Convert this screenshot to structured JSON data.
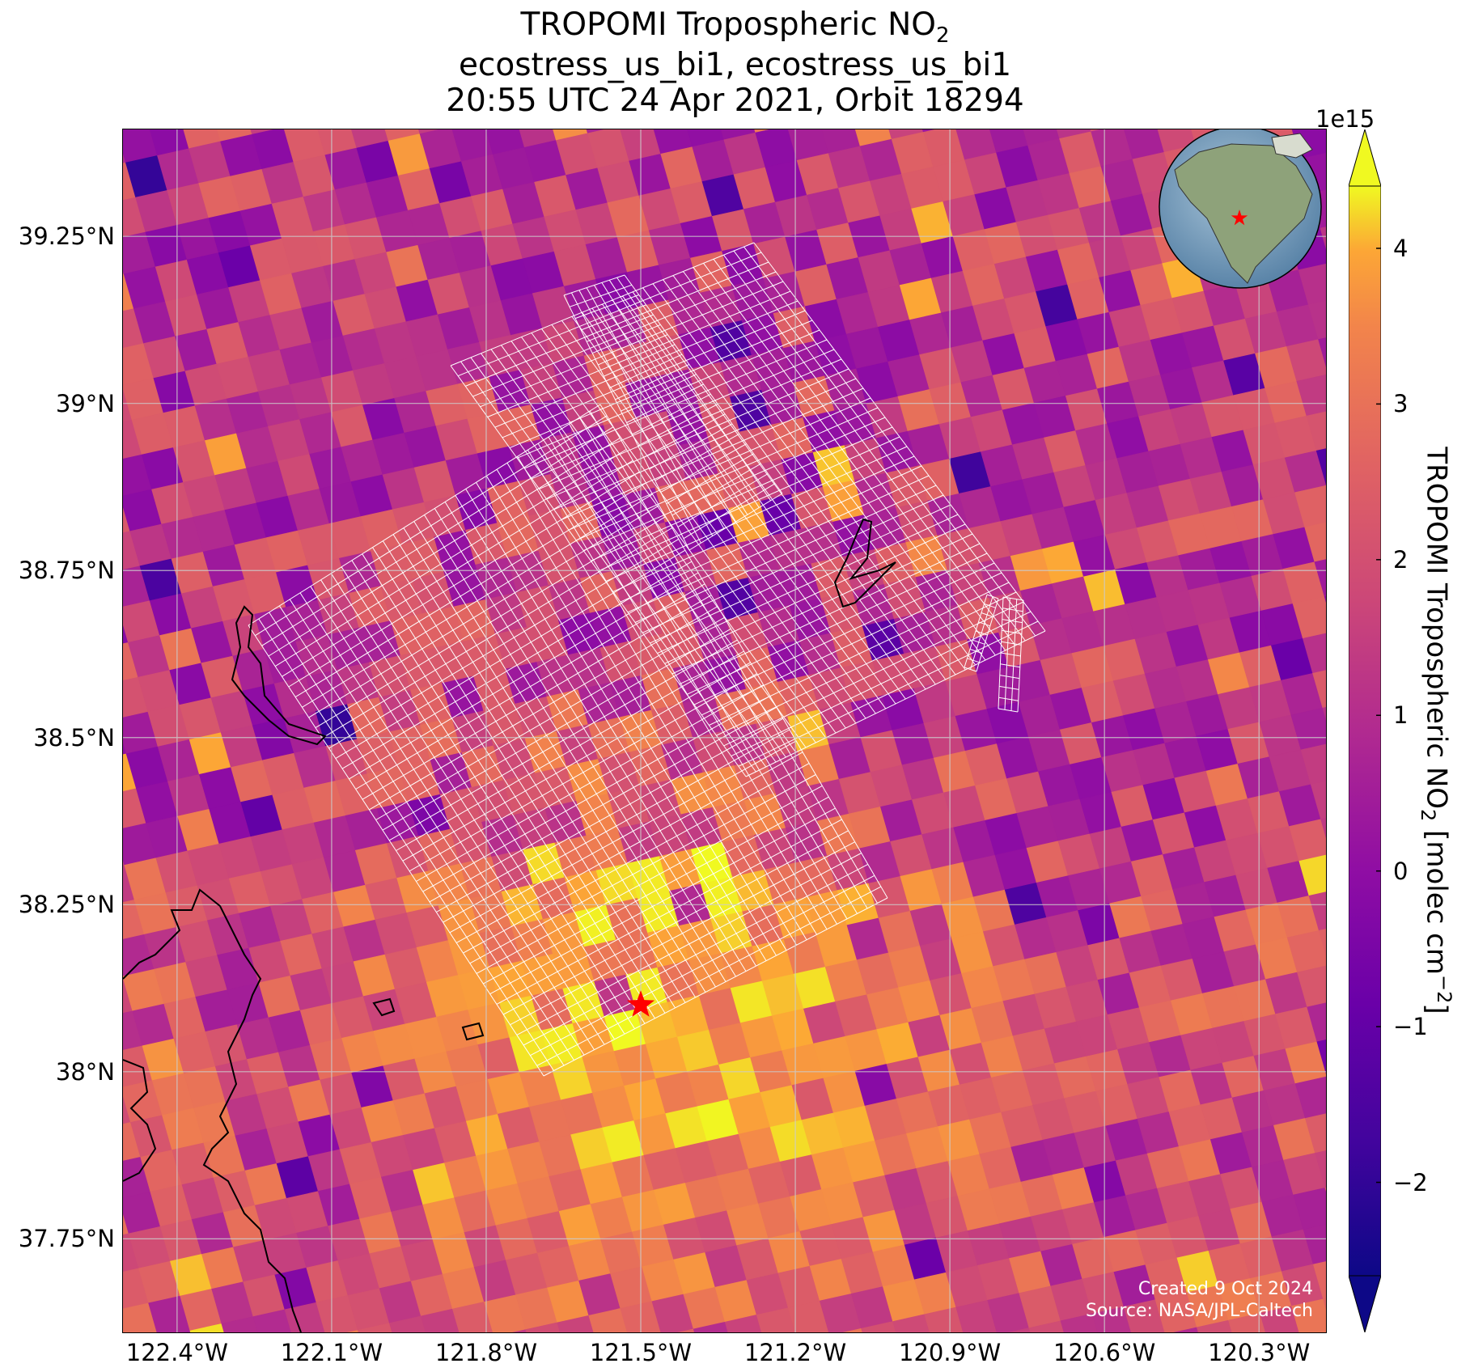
{
  "title": {
    "line1_main": "TROPOMI Tropospheric NO",
    "line1_sub": "2",
    "line2": "ecostress_us_bi1, ecostress_us_bi1",
    "line3": "20:55 UTC 24 Apr 2021, Orbit 18294"
  },
  "map": {
    "lat_ticks": [
      "39.25°N",
      "39°N",
      "38.75°N",
      "38.5°N",
      "38.25°N",
      "38°N",
      "37.75°N"
    ],
    "lat_values": [
      39.25,
      39.0,
      38.75,
      38.5,
      38.25,
      38.0,
      37.75
    ],
    "lon_ticks": [
      "122.4°W",
      "122.1°W",
      "121.8°W",
      "121.5°W",
      "121.2°W",
      "120.9°W",
      "120.6°W",
      "120.3°W"
    ],
    "lon_values": [
      -122.4,
      -122.1,
      -121.8,
      -121.5,
      -121.2,
      -120.9,
      -120.6,
      -120.3
    ],
    "lat_range": [
      37.61,
      39.41
    ],
    "lon_range": [
      -122.505,
      -120.17
    ],
    "marker": {
      "lat": 38.1,
      "lon": -121.5,
      "color": "#ff0000",
      "icon": "star-icon"
    },
    "grid": true,
    "colors": {
      "grid": "#cccccc",
      "coastline": "#000000",
      "footprint": "#ffffff"
    }
  },
  "colorbar": {
    "label_main": "TROPOMI Tropospheric NO",
    "label_sub": "2",
    "label_units_a": " [molec cm",
    "label_units_sup": "−2",
    "label_units_b": "]",
    "exponent": "1e15",
    "ticks": [
      "4",
      "3",
      "2",
      "1",
      "0",
      "−1",
      "−2"
    ],
    "tick_values": [
      4,
      3,
      2,
      1,
      0,
      -1,
      -2
    ],
    "range": [
      -2.6,
      4.4
    ],
    "colormap": "plasma",
    "extend": "both"
  },
  "inset": {
    "icon": "globe-icon",
    "marker_color": "#ff0000"
  },
  "credit": {
    "line1": "Created 9 Oct 2024",
    "line2": "Source: NASA/JPL-Caltech"
  }
}
